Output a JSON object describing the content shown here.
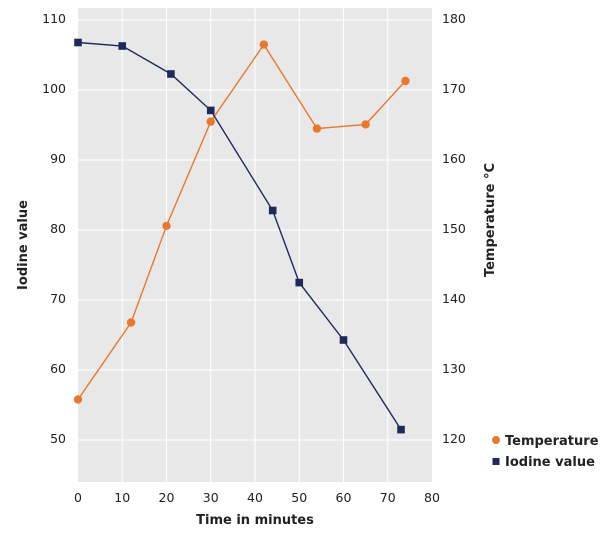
{
  "chart_data": {
    "type": "line",
    "title": "",
    "xlabel": "Time in minutes",
    "ylabel_left": "Iodine value",
    "ylabel_right": "Temperature °C",
    "xlim": [
      0,
      80
    ],
    "ylim_left": [
      45,
      110
    ],
    "ylim_right": [
      115,
      180
    ],
    "x_ticks": [
      0,
      10,
      20,
      30,
      40,
      50,
      60,
      70,
      80
    ],
    "y_ticks_left": [
      50,
      60,
      70,
      80,
      90,
      100,
      110
    ],
    "y_ticks_right": [
      120,
      130,
      140,
      150,
      160,
      170,
      180
    ],
    "grid": true,
    "legend_position": "bottom-right",
    "series": [
      {
        "name": "Temperature",
        "axis": "right",
        "marker": "circle",
        "color": "#e8782e",
        "x": [
          0,
          12,
          20,
          30,
          42,
          54,
          65,
          74
        ],
        "values": [
          125.5,
          136.5,
          150.3,
          165.2,
          176.2,
          164.2,
          164.8,
          171
        ]
      },
      {
        "name": "Iodine value",
        "axis": "left",
        "marker": "square",
        "color": "#1f2a5c",
        "x": [
          0,
          10,
          21,
          30,
          44,
          50,
          60,
          73
        ],
        "values": [
          106.5,
          106,
          102,
          96.8,
          82.5,
          72.2,
          64,
          51.2
        ]
      }
    ]
  }
}
